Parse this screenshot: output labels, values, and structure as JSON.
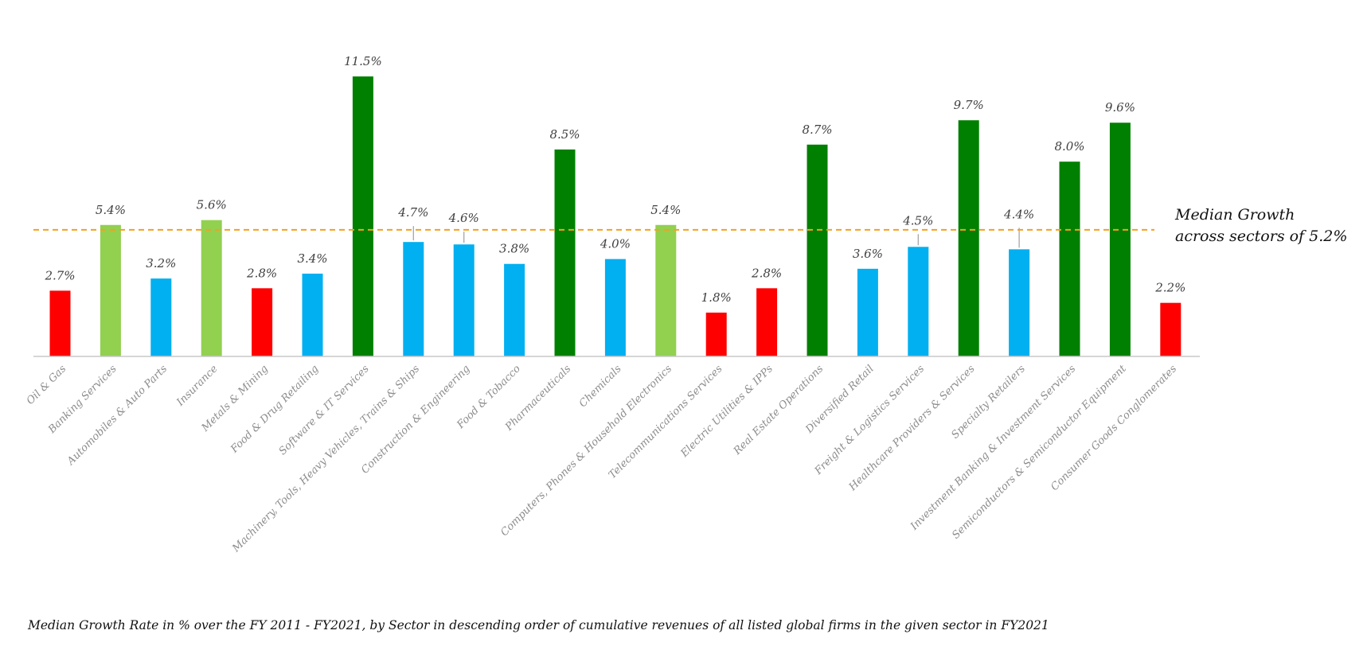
{
  "chart_data": {
    "type": "bar",
    "categories": [
      "Oil & Gas",
      "Banking Services",
      "Automobiles & Auto Parts",
      "Insurance",
      "Metals & Mining",
      "Food & Drug Retailing",
      "Software & IT Services",
      "Machinery, Tools, Heavy Vehicles, Trains & Ships",
      "Construction & Engineering",
      "Food & Tobacco",
      "Pharmaceuticals",
      "Chemicals",
      "Computers, Phones & Household Electronics",
      "Telecommunications Services",
      "Electric Utilities & IPPs",
      "Real Estate Operations",
      "Diversified Retail",
      "Freight & Logistics Services",
      "Healthcare Providers & Services",
      "Specialty Retailers",
      "Investment Banking & Investment Services",
      "Semiconductors & Semiconductor Equipment",
      "Consumer Goods Conglomerates"
    ],
    "values": [
      2.7,
      5.4,
      3.2,
      5.6,
      2.8,
      3.4,
      11.5,
      4.7,
      4.6,
      3.8,
      8.5,
      4.0,
      5.4,
      1.8,
      2.8,
      8.7,
      3.6,
      4.5,
      9.7,
      4.4,
      8.0,
      9.6,
      2.2
    ],
    "value_labels": [
      "2.7%",
      "5.4%",
      "3.2%",
      "5.6%",
      "2.8%",
      "3.4%",
      "11.5%",
      "4.7%",
      "4.6%",
      "3.8%",
      "8.5%",
      "4.0%",
      "5.4%",
      "1.8%",
      "2.8%",
      "8.7%",
      "3.6%",
      "4.5%",
      "9.7%",
      "4.4%",
      "8.0%",
      "9.6%",
      "2.2%"
    ],
    "bar_colors": [
      "#ff0000",
      "#92d050",
      "#00b0f0",
      "#92d050",
      "#ff0000",
      "#00b0f0",
      "#008000",
      "#00b0f0",
      "#00b0f0",
      "#00b0f0",
      "#008000",
      "#00b0f0",
      "#92d050",
      "#ff0000",
      "#ff0000",
      "#008000",
      "#00b0f0",
      "#00b0f0",
      "#008000",
      "#00b0f0",
      "#008000",
      "#008000",
      "#ff0000"
    ],
    "median": {
      "value": 5.2,
      "line_color": "#f4a020",
      "label_line1": "Median Growth",
      "label_line2": "across sectors of 5.2%"
    },
    "caption": "Median Growth Rate in % over the FY 2011 - FY2021, by Sector in descending order of cumulative revenues of all listed global firms in the given sector in FY2021",
    "ylim": [
      0,
      12
    ],
    "grid": false,
    "legend": "none"
  }
}
